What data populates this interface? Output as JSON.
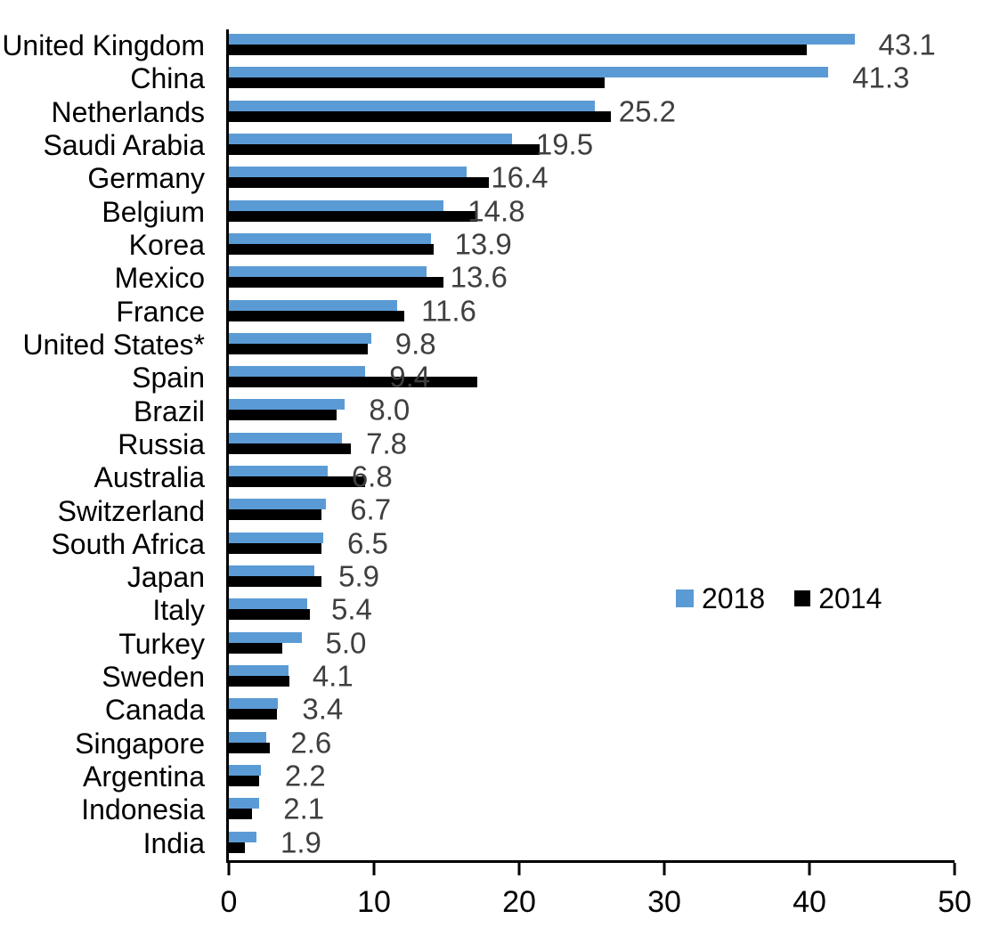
{
  "chart_data": {
    "type": "bar",
    "orientation": "horizontal",
    "title": "",
    "xlabel": "",
    "ylabel": "",
    "xlim": [
      0,
      50
    ],
    "x_ticks": [
      "0",
      "10",
      "20",
      "30",
      "40",
      "50"
    ],
    "grid": false,
    "legend_position": "inside-right-middle",
    "categories": [
      "United Kingdom",
      "China",
      "Netherlands",
      "Saudi Arabia",
      "Germany",
      "Belgium",
      "Korea",
      "Mexico",
      "France",
      "United States*",
      "Spain",
      "Brazil",
      "Russia",
      "Australia",
      "Switzerland",
      "South Africa",
      "Japan",
      "Italy",
      "Turkey",
      "Sweden",
      "Canada",
      "Singapore",
      "Argentina",
      "Indonesia",
      "India"
    ],
    "series": [
      {
        "name": "2018",
        "color": "#5B9BD5",
        "values": [
          43.1,
          41.3,
          25.2,
          19.5,
          16.4,
          14.8,
          13.9,
          13.6,
          11.6,
          9.8,
          9.4,
          8.0,
          7.8,
          6.8,
          6.7,
          6.5,
          5.9,
          5.4,
          5.0,
          4.1,
          3.4,
          2.6,
          2.2,
          2.1,
          1.9
        ]
      },
      {
        "name": "2014",
        "color": "#000000",
        "values": [
          39.8,
          25.9,
          26.3,
          21.4,
          17.9,
          17.1,
          14.1,
          14.8,
          12.1,
          9.6,
          17.1,
          7.4,
          8.4,
          9.4,
          6.4,
          6.4,
          6.4,
          5.6,
          3.7,
          4.2,
          3.3,
          2.8,
          2.1,
          1.6,
          1.1
        ]
      }
    ],
    "value_labels": [
      "43.1",
      "41.3",
      "25.2",
      "19.5",
      "16.4",
      "14.8",
      "13.9",
      "13.6",
      "11.6",
      "9.8",
      "9.4",
      "8.0",
      "7.8",
      "6.8",
      "6.7",
      "6.5",
      "5.9",
      "5.4",
      "5.0",
      "4.1",
      "3.4",
      "2.6",
      "2.2",
      "2.1",
      "1.9"
    ],
    "value_label_series": "2018",
    "value_label_color": "#3f3f3f",
    "legend": {
      "entries": [
        "2018",
        "2014"
      ]
    }
  }
}
